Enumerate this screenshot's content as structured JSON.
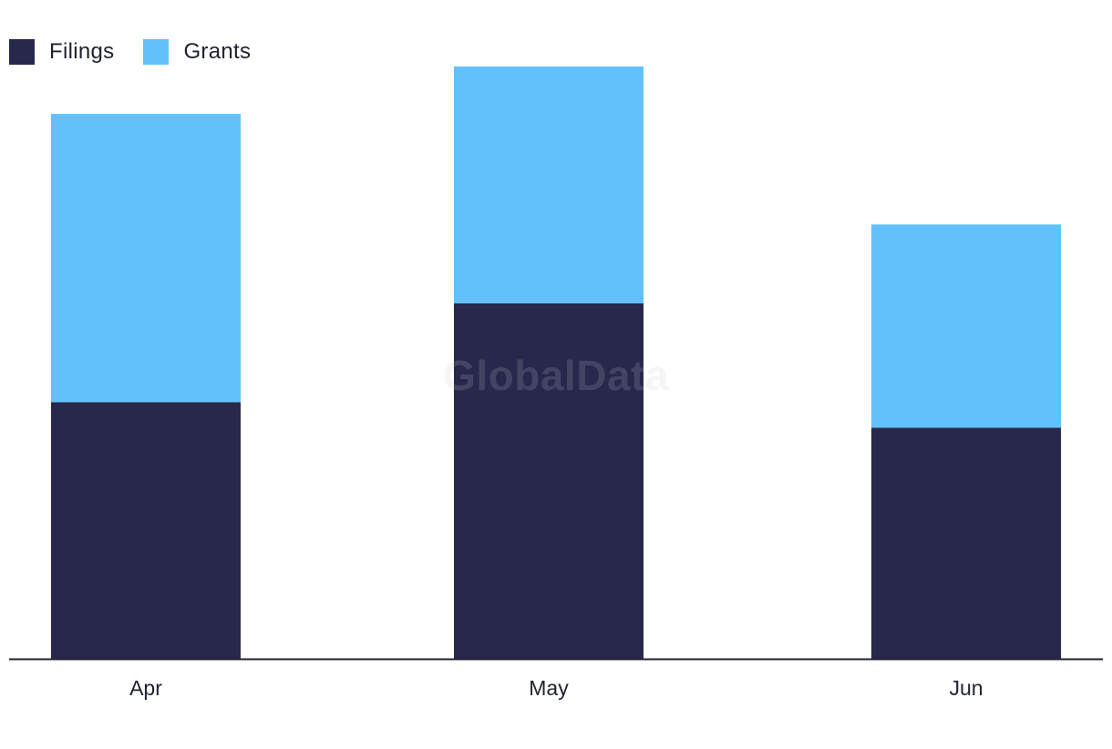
{
  "legend": [
    {
      "name": "Filings",
      "color": "#27284b"
    },
    {
      "name": "Grants",
      "color": "#62c1fa"
    }
  ],
  "watermark": "GlobalData",
  "chart_data": {
    "type": "bar",
    "stacked": true,
    "categories": [
      "Apr",
      "May",
      "Jun"
    ],
    "series": [
      {
        "name": "Filings",
        "color": "#27284b",
        "values": [
          13,
          18,
          11.7
        ]
      },
      {
        "name": "Grants",
        "color": "#62c1fa",
        "values": [
          14.6,
          12,
          10.3
        ]
      }
    ],
    "ylim": [
      0,
      30
    ],
    "title": "",
    "xlabel": "",
    "ylabel": "",
    "grid": false,
    "legend_position": "top-left"
  }
}
